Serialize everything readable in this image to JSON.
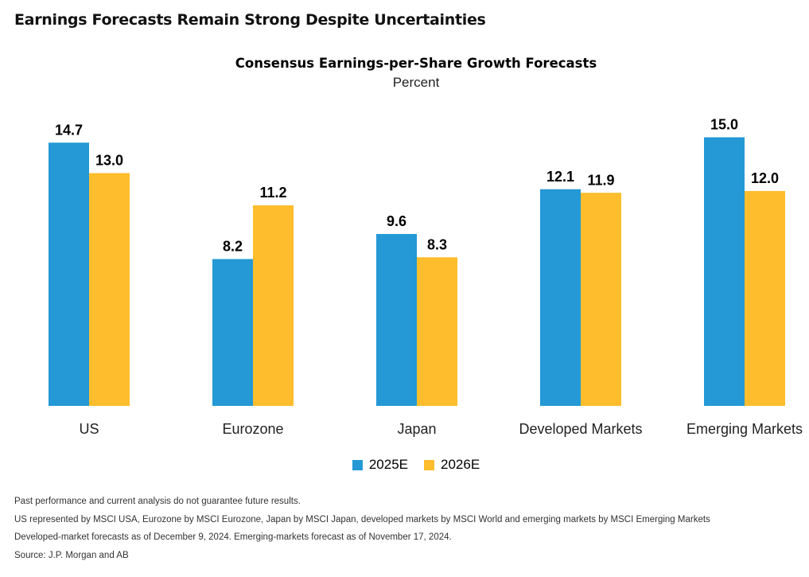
{
  "headline": "Earnings Forecasts Remain Strong Despite Uncertainties",
  "chart_data": {
    "type": "bar",
    "title": "Consensus Earnings-per-Share Growth Forecasts",
    "subtitle": "Percent",
    "categories": [
      "US",
      "Eurozone",
      "Japan",
      "Developed Markets",
      "Emerging Markets"
    ],
    "series": [
      {
        "name": "2025E",
        "values": [
          14.7,
          8.2,
          9.6,
          12.1,
          15.0
        ],
        "labels": [
          "14.7",
          "8.2",
          "9.6",
          "12.1",
          "15.0"
        ],
        "color": "#2499D5"
      },
      {
        "name": "2026E",
        "values": [
          13.0,
          11.2,
          8.3,
          11.9,
          12.0
        ],
        "labels": [
          "13.0",
          "11.2",
          "8.3",
          "11.9",
          "12.0"
        ],
        "color": "#FDBD2C"
      }
    ],
    "ylim": [
      0,
      15
    ],
    "grid": false,
    "legend": "bottom"
  },
  "legend": {
    "items": [
      {
        "label": "2025E",
        "color": "#2499D5"
      },
      {
        "label": "2026E",
        "color": "#FDBD2C"
      }
    ]
  },
  "notes": [
    "Past performance and current analysis do not guarantee future results.",
    "US represented by MSCI USA, Eurozone by MSCI Eurozone, Japan by MSCI Japan, developed markets by MSCI World and emerging markets by MSCI Emerging Markets",
    "Developed-market forecasts as of December 9, 2024. Emerging-markets forecast as of November 17, 2024.",
    "Source: J.P. Morgan and AB"
  ]
}
